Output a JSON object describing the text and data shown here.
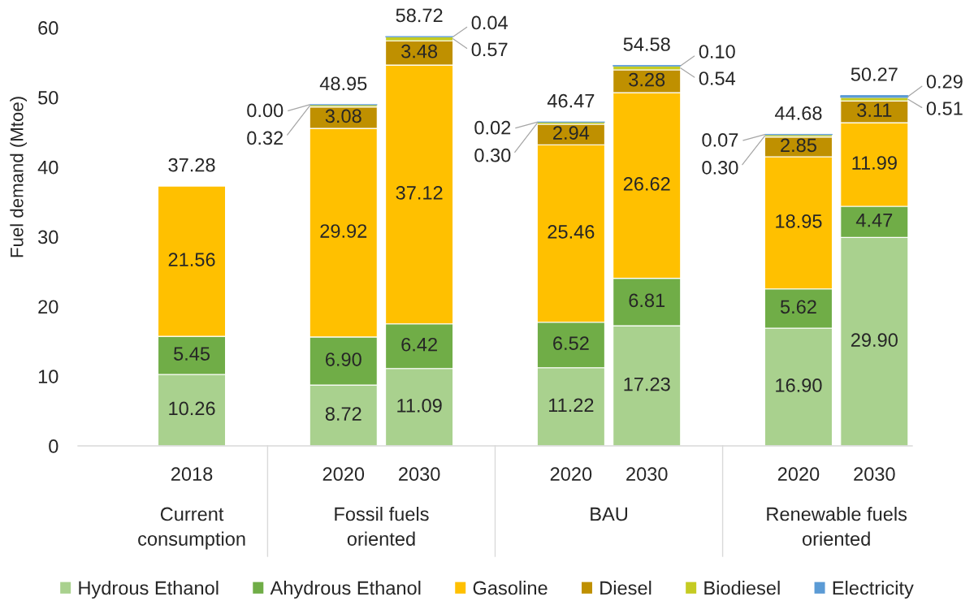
{
  "chart_data": {
    "type": "bar",
    "stacked": true,
    "ylabel": "Fuel demand (Mtoe)",
    "categories": [
      null,
      "2018",
      null,
      "2020",
      "2030",
      null,
      "2020",
      "2030",
      null,
      "2020",
      "2030"
    ],
    "series": [
      {
        "name": "Hydrous Ethanol",
        "color": "#a9d18e",
        "values": [
          null,
          10.26,
          null,
          8.72,
          11.09,
          null,
          11.22,
          17.23,
          null,
          16.9,
          29.9
        ],
        "value_labels": [
          null,
          "10.26",
          null,
          "8.72",
          "11.09",
          null,
          "11.22",
          "17.23",
          null,
          "16.90",
          "29.90"
        ]
      },
      {
        "name": "Ahydrous Ethanol",
        "color": "#70ad47",
        "values": [
          null,
          5.45,
          null,
          6.9,
          6.42,
          null,
          6.52,
          6.81,
          null,
          5.62,
          4.47
        ],
        "value_labels": [
          null,
          "5.45",
          null,
          "6.90",
          "6.42",
          null,
          "6.52",
          "6.81",
          null,
          "5.62",
          "4.47"
        ]
      },
      {
        "name": "Gasoline",
        "color": "#ffc000",
        "values": [
          null,
          21.56,
          null,
          29.92,
          37.12,
          null,
          25.46,
          26.62,
          null,
          18.95,
          11.99
        ],
        "value_labels": [
          null,
          "21.56",
          null,
          "29.92",
          "37.12",
          null,
          "25.46",
          "26.62",
          null,
          "18.95",
          "11.99"
        ]
      },
      {
        "name": "Diesel",
        "color": "#bf9000",
        "values": [
          null,
          null,
          null,
          3.08,
          3.48,
          null,
          2.94,
          3.28,
          null,
          2.85,
          3.11
        ],
        "value_labels": [
          null,
          null,
          null,
          "3.08",
          "3.48",
          null,
          "2.94",
          "3.28",
          null,
          "2.85",
          "3.11"
        ]
      },
      {
        "name": "Biodiesel",
        "color": "#c5cb22",
        "values": [
          null,
          null,
          null,
          0.32,
          0.57,
          null,
          0.3,
          0.54,
          null,
          0.3,
          0.51
        ],
        "value_labels": [
          null,
          null,
          null,
          "0.32",
          "0.57",
          null,
          "0.30",
          "0.54",
          null,
          "0.30",
          "0.51"
        ]
      },
      {
        "name": "Electricity",
        "color": "#5b9bd5",
        "values": [
          null,
          null,
          null,
          0.0,
          0.04,
          null,
          0.02,
          0.1,
          null,
          0.07,
          0.29
        ],
        "value_labels": [
          null,
          null,
          null,
          "0.00",
          "0.04",
          null,
          "0.02",
          "0.10",
          null,
          "0.07",
          "0.29"
        ]
      }
    ],
    "totals": [
      null,
      "37.28",
      null,
      "48.95",
      "58.72",
      null,
      "46.47",
      "54.58",
      null,
      "44.68",
      "50.27"
    ],
    "annotations": [
      "Current\nconsumption",
      "Fossil fuels\noriented",
      "BAU",
      "Renewable fuels\noriented"
    ],
    "ylim": [
      0,
      60
    ],
    "yticks": [
      0,
      10,
      20,
      30,
      40,
      50,
      60
    ],
    "legend": "bottom"
  }
}
